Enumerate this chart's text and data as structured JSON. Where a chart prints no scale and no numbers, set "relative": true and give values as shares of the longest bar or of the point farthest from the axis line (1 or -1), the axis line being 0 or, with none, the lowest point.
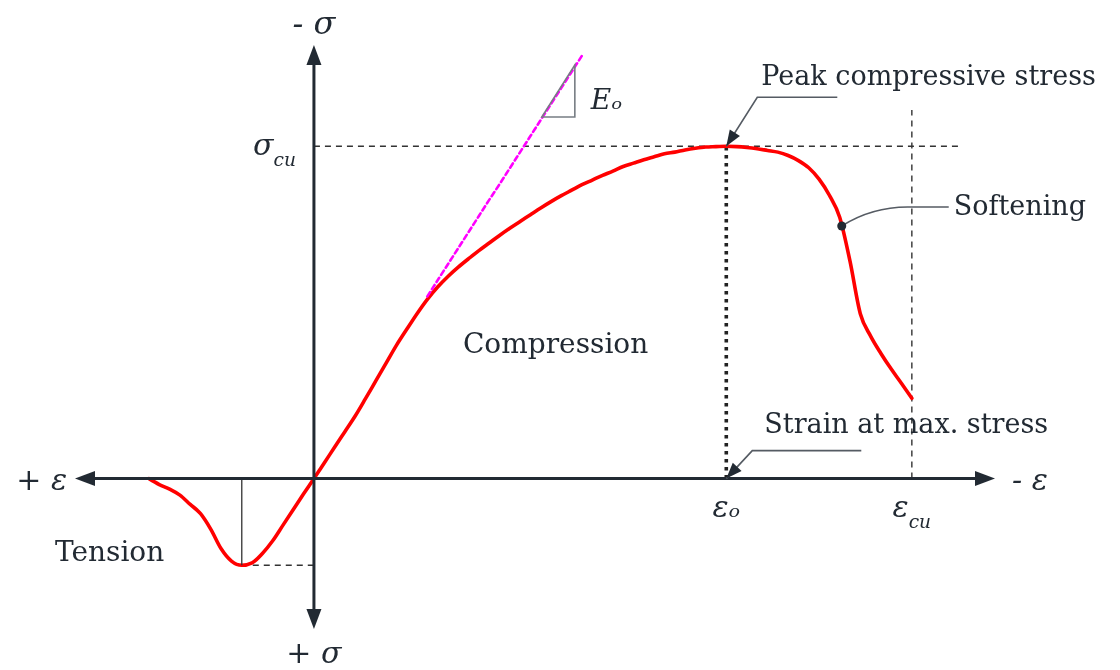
{
  "chart_data": {
    "type": "line",
    "relative": true,
    "xlabel": "- ε",
    "ylabel": "- σ",
    "categories": [
      null,
      null,
      null,
      null,
      null,
      null,
      null,
      null,
      null,
      null,
      null,
      null,
      null,
      null,
      null,
      null,
      null,
      null,
      null,
      null,
      null,
      null,
      null,
      null,
      null,
      null,
      null,
      null,
      null,
      null,
      null,
      null,
      null,
      null,
      null,
      null,
      null,
      null,
      null,
      null,
      null,
      null,
      null,
      null,
      null,
      null,
      null,
      null,
      null,
      null,
      null,
      null,
      null,
      null,
      null,
      null,
      "εₒ",
      null,
      null,
      null,
      null,
      null,
      null,
      null,
      null,
      null,
      null,
      null,
      null,
      null,
      null,
      null,
      null,
      null,
      "ε$_{cu}$"
    ],
    "series": [
      {
        "color": "#ff0000",
        "values": [
          0,
          -0.014,
          -0.025,
          -0.039,
          -0.061,
          -0.083,
          -0.12,
          -0.166,
          -0.195,
          -0.205,
          -0.199,
          -0.177,
          -0.147,
          -0.11,
          -0.073,
          -0.036,
          0,
          0.037,
          0.074,
          0.111,
          0.148,
          0.189,
          0.231,
          0.273,
          0.315,
          0.353,
          0.39,
          0.424,
          0.453,
          0.478,
          0.5,
          0.52,
          0.539,
          0.557,
          0.575,
          0.592,
          0.608,
          0.624,
          0.64,
          0.655,
          0.669,
          0.682,
          0.695,
          0.706,
          0.717,
          0.727,
          0.738,
          0.746,
          0.754,
          0.761,
          0.768,
          0.772,
          0.777,
          0.781,
          0.784,
          0.785,
          0.786,
          0.785,
          0.783,
          0.78,
          0.776,
          0.772,
          0.764,
          0.752,
          0.735,
          0.708,
          0.67,
          0.618,
          0.514,
          0.39,
          0.337,
          0.296,
          0.259,
          0.225,
          0.19
        ]
      },
      {
        "color": "#ff00ff",
        "line_style": "dashed",
        "values": [
          null,
          null,
          null,
          null,
          null,
          null,
          null,
          null,
          null,
          null,
          null,
          null,
          null,
          null,
          null,
          null,
          null,
          null,
          null,
          null,
          null,
          null,
          null,
          null,
          null,
          null,
          null,
          0.431,
          0.469,
          0.507,
          0.545,
          0.583,
          0.621,
          0.659,
          0.696,
          0.734,
          0.772,
          0.81,
          0.848,
          0.886,
          0.924,
          0.962,
          1,
          null,
          null,
          null,
          null,
          null,
          null,
          null,
          null,
          null,
          null,
          null,
          null,
          null,
          null,
          null,
          null,
          null,
          null,
          null,
          null,
          null,
          null,
          null,
          null,
          null,
          null,
          null,
          null,
          null,
          null,
          null,
          null
        ]
      }
    ],
    "ref_lines": [
      {
        "axis": "y",
        "value": 0.786,
        "label": "σ$_{cu}$",
        "color": "#333333",
        "line_style": "dashed"
      },
      {
        "axis": "x",
        "value": "εₒ",
        "color": "#222222",
        "line_style": "dotted"
      },
      {
        "axis": "x",
        "value": "ε$_{cu}$",
        "color": "#333333",
        "line_style": "dashed"
      },
      {
        "axis": "y",
        "value": -0.205,
        "color": "#333333",
        "line_style": "dashed"
      }
    ],
    "annotations": [
      "Compression",
      "Tension",
      {
        "text": "Peak compressive stress",
        "x": "εₒ",
        "y": 0.786
      },
      "Softening",
      {
        "text": "Strain at max. stress",
        "x": "εₒ",
        "y": 0
      },
      "Eₒ",
      "+ ε",
      "+ σ"
    ]
  }
}
